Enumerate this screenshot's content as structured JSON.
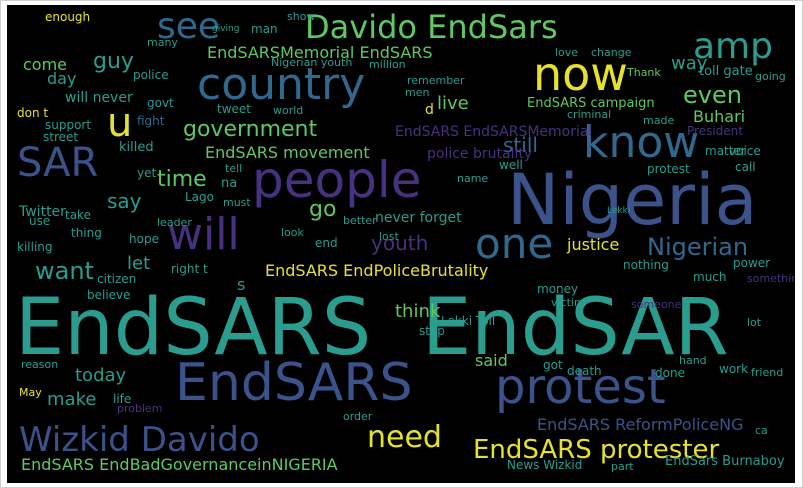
{
  "colors": {
    "background": "#000000",
    "frame": "#ffffff",
    "teal": "#2a9d8f",
    "green": "#5ec962",
    "yellow": "#e6e22c",
    "purple": "#46327e",
    "indigo": "#3b528b",
    "blue": "#31688e",
    "cyan": "#21918c"
  },
  "words": {
    "endsars_big": "EndSARS",
    "endsar_big": "EndSAR",
    "nigeria": "Nigeria",
    "people": "people",
    "endsars_mid": "EndSARS",
    "protest": "protest",
    "country": "country",
    "davido_endsars": "Davido EndSars",
    "now": "now",
    "know": "know",
    "will": "will",
    "one": "one",
    "wizkid_davido": "Wizkid Davido",
    "see": "see",
    "amp": "amp",
    "sar": "SAR",
    "u": "u",
    "need": "need",
    "endsars_protester": "EndSARS protester",
    "endsars_endbad": "EndSARS EndBadGovernanceinNIGERIA",
    "endsars_endpolice": "EndSARS EndPoliceBrutality",
    "government": "government",
    "endsars_memorial": "EndSARSMemorial EndSARS",
    "nigerian": "Nigerian",
    "youth": "youth",
    "want": "want",
    "time": "time",
    "even": "even",
    "guy": "guy",
    "endsars_movement": "EndSARS movement",
    "endsars_reform": "EndSARS ReformPoliceNG",
    "buhari": "Buhari",
    "say": "say",
    "still": "still",
    "go": "go",
    "let": "let",
    "today": "today",
    "make": "make",
    "think": "think",
    "said": "said",
    "way": "way",
    "day": "day",
    "come": "come",
    "live": "live",
    "justice": "justice",
    "endsars_campaign": "EndSARS campaign",
    "endsars_endsarsmemorial": "EndSARS EndSARSMemorial",
    "police_brutality": "police brutality",
    "will_never": "will never",
    "support": "support",
    "killed": "killed",
    "govt": "govt",
    "police": "police",
    "tweet": "tweet",
    "fight": "fight",
    "enough": "enough",
    "man": "man",
    "many": "many",
    "show": "show",
    "love": "love",
    "change": "change",
    "going": "going",
    "toll_gate": "toll gate",
    "nigerian_youth": "Nigerian youth",
    "million": "million",
    "remember": "remember",
    "men": "men",
    "criminal": "criminal",
    "dont_t": "don t",
    "street": "street",
    "world": "world",
    "d": "d",
    "thank": "Thank",
    "made": "made",
    "president": "President",
    "matter": "matter",
    "voice": "voice",
    "call": "call",
    "protest_small": "protest",
    "na": "na",
    "yet": "yet",
    "lago": "Lago",
    "tell": "tell",
    "must": "must",
    "twitter": "Twitter",
    "use": "use",
    "take": "take",
    "leader": "leader",
    "better": "better",
    "never_forget": "never forget",
    "lost": "lost",
    "name": "name",
    "well": "well",
    "happened": "happened",
    "killing": "killing",
    "thing": "thing",
    "hope": "hope",
    "end": "end",
    "look": "look",
    "right_t": "right t",
    "citizen": "citizen",
    "believe": "believe",
    "nothing": "nothing",
    "power": "power",
    "much": "much",
    "money": "money",
    "victim": "victim",
    "someone": "someone",
    "something": "something",
    "s": "s",
    "stop": "stop",
    "lekki_toll": "Lekki Toll",
    "reason": "reason",
    "may": "May",
    "life": "life",
    "problem": "problem",
    "order": "order",
    "got": "got",
    "death": "death",
    "done": "done",
    "hand": "hand",
    "work": "work",
    "friend": "friend",
    "news_wizkid": "News Wizkid",
    "part": "part",
    "endsars_burnaboy": "EndSars Burnaboy",
    "ca": "ca",
    "lot": "lot",
    "giving": "giving",
    "lekki": "Lekki"
  }
}
